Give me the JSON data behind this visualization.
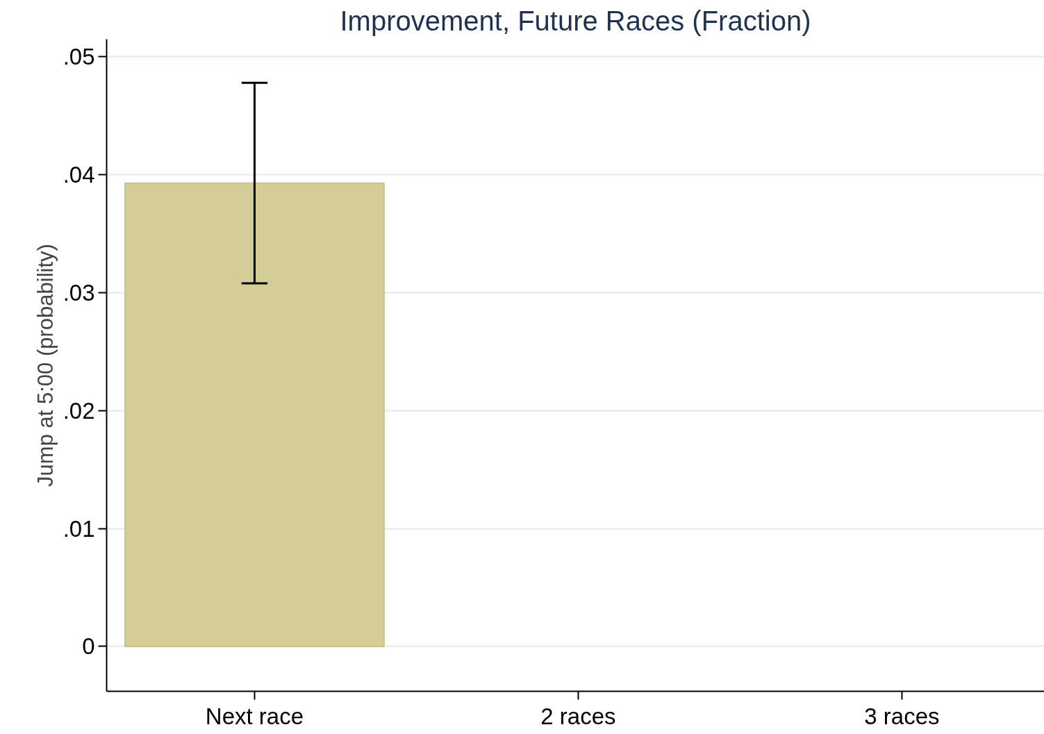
{
  "chart_data": {
    "type": "bar",
    "title": "Improvement, Future Races (Fraction)",
    "ylabel": "Jump at 5:00 (probability)",
    "categories": [
      "Next race",
      "2 races",
      "3 races"
    ],
    "values": [
      0.0393,
      null,
      null
    ],
    "color": "#d5cd98",
    "errors": [
      [
        0.0308,
        0.0478
      ],
      null,
      null
    ],
    "ylim": [
      -0.0038,
      0.0515
    ],
    "yticks": [
      0,
      {
        "value": 0.01,
        "label": ".01"
      },
      {
        "value": 0.02,
        "label": ".02"
      },
      {
        "value": 0.03,
        "label": ".03"
      },
      {
        "value": 0.04,
        "label": ".04"
      },
      {
        "value": 0.05,
        "label": ".05"
      }
    ],
    "grid": "y"
  }
}
